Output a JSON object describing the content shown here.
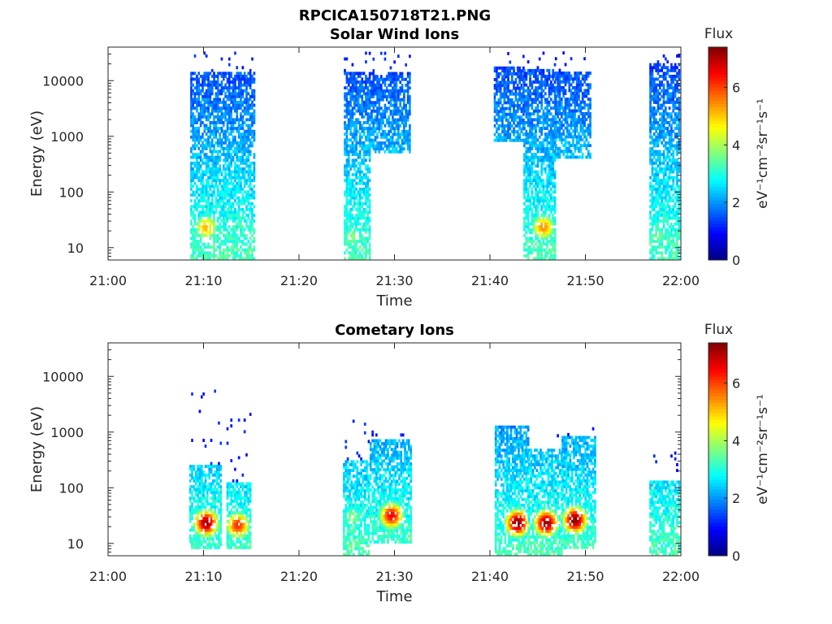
{
  "figure_title": "RPCICA150718T21.PNG",
  "chart_data": [
    {
      "type": "heatmap",
      "title": "Solar Wind Ions",
      "xlabel": "Time",
      "ylabel": "Energy (eV)",
      "x_ticks": [
        "21:00",
        "21:10",
        "21:20",
        "21:30",
        "21:40",
        "21:50",
        "22:00"
      ],
      "x_range_minutes": [
        0,
        60
      ],
      "y_scale": "log",
      "y_ticks": [
        "10",
        "100",
        "1000",
        "10000"
      ],
      "y_range": [
        6,
        40000
      ],
      "colorbar": {
        "label": "Flux",
        "unit_label": "eV⁻¹cm⁻²sr⁻¹s⁻¹",
        "range": [
          0,
          7.4
        ],
        "ticks": [
          "0",
          "2",
          "4",
          "6"
        ],
        "colormap": "jet"
      },
      "bursts": [
        {
          "t_start": 8.6,
          "t_end": 15.2,
          "e_low": 6,
          "e_high": 14000,
          "sparse_top": 30000,
          "peak_energy": 22,
          "peak_time": 10.2,
          "peak_value": 5.2
        },
        {
          "t_start": 24.7,
          "t_end": 27.3,
          "e_low": 6,
          "e_high": 14000,
          "sparse_top": 30000,
          "peak_energy": 15,
          "peak_time": 25.5,
          "peak_value": 3.8
        },
        {
          "t_start": 27.3,
          "t_end": 31.5,
          "e_low": 500,
          "e_high": 14000,
          "sparse_top": 30000,
          "peak_energy": 3000,
          "peak_time": 29.5,
          "peak_value": 1.3
        },
        {
          "t_start": 40.4,
          "t_end": 43.5,
          "e_low": 800,
          "e_high": 16000,
          "sparse_top": 30000,
          "peak_energy": 3000,
          "peak_time": 42.0,
          "peak_value": 1.3
        },
        {
          "t_start": 43.5,
          "t_end": 46.8,
          "e_low": 6,
          "e_high": 16000,
          "sparse_top": 30000,
          "peak_energy": 22,
          "peak_time": 45.5,
          "peak_value": 5.5
        },
        {
          "t_start": 46.8,
          "t_end": 50.5,
          "e_low": 400,
          "e_high": 14000,
          "sparse_top": 30000,
          "peak_energy": 3000,
          "peak_time": 48.0,
          "peak_value": 1.3
        },
        {
          "t_start": 56.7,
          "t_end": 59.9,
          "e_low": 6,
          "e_high": 20000,
          "sparse_top": 30000,
          "peak_energy": 15,
          "peak_time": 57.5,
          "peak_value": 3.6
        }
      ]
    },
    {
      "type": "heatmap",
      "title": "Cometary Ions",
      "xlabel": "Time",
      "ylabel": "Energy (eV)",
      "x_ticks": [
        "21:00",
        "21:10",
        "21:20",
        "21:30",
        "21:40",
        "21:50",
        "22:00"
      ],
      "x_range_minutes": [
        0,
        60
      ],
      "y_scale": "log",
      "y_ticks": [
        "10",
        "100",
        "1000",
        "10000"
      ],
      "y_range": [
        6,
        40000
      ],
      "colorbar": {
        "label": "Flux",
        "unit_label": "eV⁻¹cm⁻²sr⁻¹s⁻¹",
        "range": [
          0,
          7.4
        ],
        "ticks": [
          "0",
          "2",
          "4",
          "6"
        ],
        "colormap": "jet"
      },
      "bursts": [
        {
          "t_start": 8.5,
          "t_end": 11.8,
          "e_low": 8,
          "e_high": 250,
          "sparse_top": 7000,
          "peak_energy": 22,
          "peak_time": 10.2,
          "peak_value": 7.2
        },
        {
          "t_start": 12.4,
          "t_end": 14.8,
          "e_low": 8,
          "e_high": 120,
          "sparse_top": 2500,
          "peak_energy": 20,
          "peak_time": 13.5,
          "peak_value": 6.2
        },
        {
          "t_start": 24.6,
          "t_end": 27.2,
          "e_low": 6,
          "e_high": 300,
          "sparse_top": 1500,
          "peak_energy": 28,
          "peak_time": 25.5,
          "peak_value": 3.8
        },
        {
          "t_start": 27.4,
          "t_end": 31.6,
          "e_low": 10,
          "e_high": 700,
          "sparse_top": 1000,
          "peak_energy": 30,
          "peak_time": 29.6,
          "peak_value": 6.6
        },
        {
          "t_start": 40.5,
          "t_end": 44.0,
          "e_low": 6,
          "e_high": 1300,
          "sparse_top": 1300,
          "peak_energy": 22,
          "peak_time": 42.8,
          "peak_value": 7.4
        },
        {
          "t_start": 44.0,
          "t_end": 47.5,
          "e_low": 6,
          "e_high": 500,
          "sparse_top": 900,
          "peak_energy": 22,
          "peak_time": 45.8,
          "peak_value": 7.3
        },
        {
          "t_start": 47.5,
          "t_end": 51.0,
          "e_low": 8,
          "e_high": 800,
          "sparse_top": 1300,
          "peak_energy": 25,
          "peak_time": 48.8,
          "peak_value": 7.4
        },
        {
          "t_start": 56.7,
          "t_end": 59.9,
          "e_low": 6,
          "e_high": 130,
          "sparse_top": 400,
          "peak_energy": 15,
          "peak_time": 58.5,
          "peak_value": 3.2
        }
      ]
    }
  ]
}
